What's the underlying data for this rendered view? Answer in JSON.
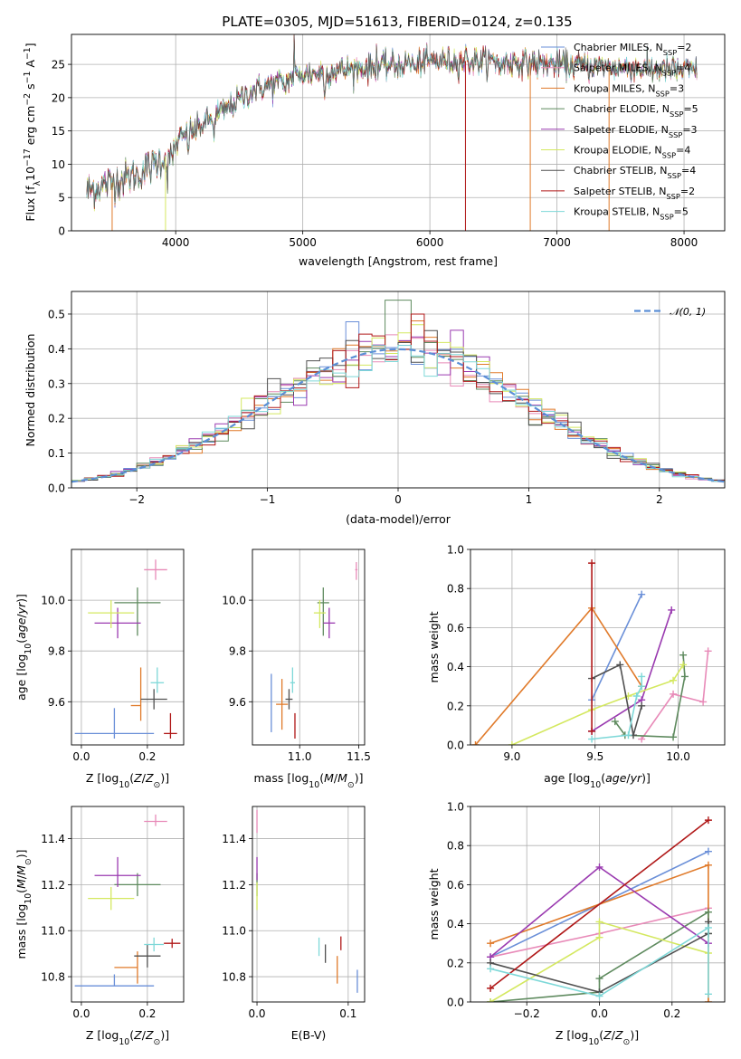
{
  "figure_title": "PLATE=0305, MJD=51613, FIBERID=0124, z=0.135",
  "series_legend": [
    {
      "name": "Chabrier MILES, N_SSP=2",
      "base": "Chabrier MILES, N",
      "sub": "SSP",
      "tail": "=2",
      "color": "#6a8fd8"
    },
    {
      "name": "Salpeter MILES, N_SSP=4",
      "base": "Salpeter MILES, N",
      "sub": "SSP",
      "tail": "=4",
      "color": "#e88ab8"
    },
    {
      "name": "Kroupa MILES, N_SSP=3",
      "base": "Kroupa MILES, N",
      "sub": "SSP",
      "tail": "=3",
      "color": "#e07a2a"
    },
    {
      "name": "Chabrier ELODIE, N_SSP=5",
      "base": "Chabrier ELODIE, N",
      "sub": "SSP",
      "tail": "=5",
      "color": "#5e8a5e"
    },
    {
      "name": "Salpeter ELODIE, N_SSP=3",
      "base": "Salpeter ELODIE, N",
      "sub": "SSP",
      "tail": "=3",
      "color": "#9a3ab0"
    },
    {
      "name": "Kroupa ELODIE, N_SSP=4",
      "base": "Kroupa ELODIE, N",
      "sub": "SSP",
      "tail": "=4",
      "color": "#d4e860"
    },
    {
      "name": "Chabrier STELIB, N_SSP=4",
      "base": "Chabrier STELIB, N",
      "sub": "SSP",
      "tail": "=4",
      "color": "#505050"
    },
    {
      "name": "Salpeter STELIB, N_SSP=2",
      "base": "Salpeter STELIB, N",
      "sub": "SSP",
      "tail": "=2",
      "color": "#b01818"
    },
    {
      "name": "Kroupa STELIB, N_SSP=5",
      "base": "Kroupa STELIB, N",
      "sub": "SSP",
      "tail": "=5",
      "color": "#7ed8d8"
    }
  ],
  "chart_data": [
    {
      "id": "spectrum",
      "type": "line",
      "xlabel": "wavelength [Angstrom, rest frame]",
      "ylabel": "Flux [f_λ 10^-17 erg cm^-2 s^-1 A^-1]",
      "ylabel_parts": {
        "a": "Flux [f",
        "b": "λ",
        "c": "10",
        "d": "−17",
        "e": " erg cm",
        "f": "−2",
        "g": " s",
        "h": "−1",
        "i": " A",
        "j": "−1",
        "k": "]"
      },
      "xlim": [
        3180,
        8320
      ],
      "ylim": [
        0,
        29.5
      ],
      "xticks": [
        4000,
        5000,
        6000,
        7000,
        8000
      ],
      "yticks": [
        0,
        5,
        10,
        15,
        20,
        25
      ],
      "x_range": [
        3300,
        8100
      ],
      "continuum_knots": [
        [
          3300,
          6.0
        ],
        [
          3700,
          8.5
        ],
        [
          3950,
          11.5
        ],
        [
          4050,
          14.0
        ],
        [
          4300,
          17.0
        ],
        [
          4600,
          21.0
        ],
        [
          5000,
          23.5
        ],
        [
          5500,
          24.5
        ],
        [
          6000,
          25.5
        ],
        [
          6500,
          25.5
        ],
        [
          7000,
          25.0
        ],
        [
          7500,
          24.5
        ],
        [
          8100,
          24.0
        ]
      ],
      "spikes": [
        [
          4930,
          29.3
        ],
        [
          5580,
          27.8
        ],
        [
          6280,
          27.5
        ]
      ],
      "dropouts": [
        {
          "x": 3500,
          "color": "#e07a2a"
        },
        {
          "x": 3920,
          "color": "#d4e860"
        },
        {
          "x": 6790,
          "color": "#e07a2a"
        },
        {
          "x": 7410,
          "color": "#e07a2a"
        },
        {
          "x": 6280,
          "color": "#b01818"
        }
      ]
    },
    {
      "id": "residuals",
      "type": "step-histogram",
      "xlabel": "(data-model)/error",
      "ylabel": "Normed distribution",
      "xlim": [
        -2.5,
        2.5
      ],
      "ylim": [
        0,
        0.565
      ],
      "xticks": [
        -2,
        -1,
        0,
        1,
        2
      ],
      "yticks": [
        0.0,
        0.1,
        0.2,
        0.3,
        0.4,
        0.5
      ],
      "bin_width": 0.1,
      "gaussian_label": "𝒩(0, 1)",
      "gaussian_color": "#5b8fd6"
    },
    {
      "id": "age_vs_Z",
      "type": "errorbar",
      "xlabel": "Z [log10(Z/Z☉)]",
      "ylabel": "age  [log10(age/yr)]",
      "xlim": [
        -0.03,
        0.31
      ],
      "ylim": [
        9.43,
        10.2
      ],
      "xticks": [
        0.0,
        0.2
      ],
      "yticks": [
        9.6,
        9.8,
        10.0
      ],
      "points": [
        {
          "c": 0,
          "x": 0.1,
          "y": 9.475,
          "xerr": [
            0.12,
            0.12
          ],
          "yerr": [
            0.02,
            0.1
          ]
        },
        {
          "c": 1,
          "x": 0.225,
          "y": 10.12,
          "xerr": [
            0.035,
            0.035
          ],
          "yerr": [
            0.04,
            0.04
          ]
        },
        {
          "c": 2,
          "x": 0.18,
          "y": 9.585,
          "xerr": [
            0.03,
            0.0
          ],
          "yerr": [
            0.06,
            0.15
          ]
        },
        {
          "c": 3,
          "x": 0.17,
          "y": 9.99,
          "xerr": [
            0.07,
            0.07
          ],
          "yerr": [
            0.13,
            0.06
          ]
        },
        {
          "c": 4,
          "x": 0.11,
          "y": 9.91,
          "xerr": [
            0.07,
            0.07
          ],
          "yerr": [
            0.06,
            0.06
          ]
        },
        {
          "c": 5,
          "x": 0.09,
          "y": 9.95,
          "xerr": [
            0.07,
            0.07
          ],
          "yerr": [
            0.06,
            0.05
          ]
        },
        {
          "c": 6,
          "x": 0.22,
          "y": 9.61,
          "xerr": [
            0.04,
            0.04
          ],
          "yerr": [
            0.04,
            0.04
          ]
        },
        {
          "c": 7,
          "x": 0.27,
          "y": 9.475,
          "xerr": [
            0.02,
            0.02
          ],
          "yerr": [
            0.02,
            0.08
          ]
        },
        {
          "c": 8,
          "x": 0.23,
          "y": 9.675,
          "xerr": [
            0.02,
            0.02
          ],
          "yerr": [
            0.04,
            0.06
          ]
        }
      ]
    },
    {
      "id": "age_vs_mass",
      "type": "errorbar",
      "xlabel": "mass [log10(M/M☉)]",
      "ylabel": "",
      "xlim": [
        10.6,
        11.55
      ],
      "ylim": [
        9.43,
        10.2
      ],
      "xticks": [
        11.0,
        11.5
      ],
      "yticks": [
        9.6,
        9.8,
        10.0
      ],
      "points": [
        {
          "c": 0,
          "x": 10.76,
          "y": 9.6,
          "xerr": [
            0.0,
            0.0
          ],
          "yerr": [
            0.12,
            0.11
          ]
        },
        {
          "c": 1,
          "x": 11.48,
          "y": 10.12,
          "xerr": [
            0.01,
            0.01
          ],
          "yerr": [
            0.04,
            0.03
          ]
        },
        {
          "c": 2,
          "x": 10.85,
          "y": 9.59,
          "xerr": [
            0.05,
            0.05
          ],
          "yerr": [
            0.1,
            0.1
          ]
        },
        {
          "c": 3,
          "x": 11.2,
          "y": 9.99,
          "xerr": [
            0.05,
            0.05
          ],
          "yerr": [
            0.13,
            0.06
          ]
        },
        {
          "c": 4,
          "x": 11.25,
          "y": 9.91,
          "xerr": [
            0.05,
            0.05
          ],
          "yerr": [
            0.06,
            0.06
          ]
        },
        {
          "c": 5,
          "x": 11.17,
          "y": 9.95,
          "xerr": [
            0.05,
            0.05
          ],
          "yerr": [
            0.06,
            0.05
          ]
        },
        {
          "c": 6,
          "x": 10.91,
          "y": 9.61,
          "xerr": [
            0.03,
            0.03
          ],
          "yerr": [
            0.04,
            0.04
          ]
        },
        {
          "c": 7,
          "x": 10.96,
          "y": 9.475,
          "xerr": [
            0.0,
            0.0
          ],
          "yerr": [
            0.02,
            0.08
          ]
        },
        {
          "c": 8,
          "x": 10.94,
          "y": 9.675,
          "xerr": [
            0.02,
            0.02
          ],
          "yerr": [
            0.04,
            0.06
          ]
        }
      ]
    },
    {
      "id": "weight_vs_age",
      "type": "line",
      "xlabel": "age  [log10(age/yr)]",
      "ylabel": "mass weight",
      "xlim": [
        8.75,
        10.28
      ],
      "ylim": [
        0.0,
        1.0
      ],
      "xticks": [
        9.0,
        9.5,
        10.0
      ],
      "yticks": [
        0.0,
        0.2,
        0.4,
        0.6,
        0.8,
        1.0
      ],
      "series": [
        {
          "c": 0,
          "x": [
            9.48,
            9.78
          ],
          "y": [
            0.23,
            0.77
          ]
        },
        {
          "c": 1,
          "x": [
            9.78,
            9.97,
            10.15,
            10.18
          ],
          "y": [
            0.03,
            0.26,
            0.22,
            0.48
          ]
        },
        {
          "c": 2,
          "x": [
            8.78,
            9.48,
            9.78
          ],
          "y": [
            0.0,
            0.7,
            0.3
          ]
        },
        {
          "c": 3,
          "x": [
            9.62,
            9.68,
            9.97,
            10.04,
            10.03
          ],
          "y": [
            0.12,
            0.05,
            0.04,
            0.35,
            0.46
          ]
        },
        {
          "c": 4,
          "x": [
            9.48,
            9.78,
            9.96
          ],
          "y": [
            0.07,
            0.23,
            0.69
          ]
        },
        {
          "c": 5,
          "x": [
            9.0,
            9.48,
            9.7,
            9.97,
            10.03
          ],
          "y": [
            0.0,
            0.18,
            0.25,
            0.33,
            0.41
          ]
        },
        {
          "c": 6,
          "x": [
            9.48,
            9.65,
            9.73,
            9.78
          ],
          "y": [
            0.34,
            0.41,
            0.05,
            0.2
          ]
        },
        {
          "c": 7,
          "x": [
            9.48,
            9.48
          ],
          "y": [
            0.07,
            0.93
          ]
        },
        {
          "c": 8,
          "x": [
            9.48,
            9.7,
            9.75,
            9.78,
            9.78
          ],
          "y": [
            0.03,
            0.05,
            0.25,
            0.3,
            0.35
          ]
        }
      ]
    },
    {
      "id": "mass_vs_Z",
      "type": "errorbar",
      "xlabel": "Z [log10(Z/Z☉)]",
      "ylabel": "mass [log10(M/M☉)]",
      "xlim": [
        -0.03,
        0.31
      ],
      "ylim": [
        10.69,
        11.54
      ],
      "xticks": [
        0.0,
        0.2
      ],
      "yticks": [
        10.8,
        11.0,
        11.2,
        11.4
      ],
      "points": [
        {
          "c": 0,
          "x": 0.1,
          "y": 10.76,
          "xerr": [
            0.12,
            0.12
          ],
          "yerr": [
            0.0,
            0.05
          ]
        },
        {
          "c": 1,
          "x": 0.225,
          "y": 11.475,
          "xerr": [
            0.035,
            0.035
          ],
          "yerr": [
            0.02,
            0.03
          ]
        },
        {
          "c": 2,
          "x": 0.17,
          "y": 10.84,
          "xerr": [
            0.07,
            0.0
          ],
          "yerr": [
            0.07,
            0.07
          ]
        },
        {
          "c": 3,
          "x": 0.17,
          "y": 11.2,
          "xerr": [
            0.07,
            0.07
          ],
          "yerr": [
            0.05,
            0.05
          ]
        },
        {
          "c": 4,
          "x": 0.11,
          "y": 11.24,
          "xerr": [
            0.07,
            0.07
          ],
          "yerr": [
            0.05,
            0.08
          ]
        },
        {
          "c": 5,
          "x": 0.09,
          "y": 11.14,
          "xerr": [
            0.07,
            0.07
          ],
          "yerr": [
            0.05,
            0.05
          ]
        },
        {
          "c": 6,
          "x": 0.2,
          "y": 10.89,
          "xerr": [
            0.04,
            0.04
          ],
          "yerr": [
            0.05,
            0.05
          ]
        },
        {
          "c": 7,
          "x": 0.275,
          "y": 10.945,
          "xerr": [
            0.025,
            0.025
          ],
          "yerr": [
            0.02,
            0.02
          ]
        },
        {
          "c": 8,
          "x": 0.22,
          "y": 10.94,
          "xerr": [
            0.03,
            0.03
          ],
          "yerr": [
            0.03,
            0.03
          ]
        }
      ]
    },
    {
      "id": "mass_vs_EBV",
      "type": "errorbar",
      "xlabel": "E(B-V)",
      "ylabel": "",
      "xlim": [
        -0.005,
        0.118
      ],
      "ylim": [
        10.69,
        11.54
      ],
      "xticks": [
        0.0,
        0.1
      ],
      "yticks": [
        10.8,
        11.0,
        11.2,
        11.4
      ],
      "points": [
        {
          "c": 0,
          "x": 0.11,
          "y": 10.78,
          "xerr": [
            0.0,
            0.0
          ],
          "yerr": [
            0.05,
            0.05
          ]
        },
        {
          "c": 1,
          "x": 0.0,
          "y": 11.475,
          "xerr": [
            0.0,
            0.0
          ],
          "yerr": [
            0.05,
            0.05
          ]
        },
        {
          "c": 2,
          "x": 0.088,
          "y": 10.83,
          "xerr": [
            0.0,
            0.0
          ],
          "yerr": [
            0.06,
            0.06
          ]
        },
        {
          "c": 3,
          "x": 0.0,
          "y": 11.2,
          "xerr": [
            0.0,
            0.0
          ],
          "yerr": [
            0.05,
            0.05
          ]
        },
        {
          "c": 4,
          "x": 0.0,
          "y": 11.27,
          "xerr": [
            0.0,
            0.0
          ],
          "yerr": [
            0.05,
            0.05
          ]
        },
        {
          "c": 5,
          "x": 0.0,
          "y": 11.15,
          "xerr": [
            0.0,
            0.0
          ],
          "yerr": [
            0.06,
            0.06
          ]
        },
        {
          "c": 6,
          "x": 0.075,
          "y": 10.9,
          "xerr": [
            0.0,
            0.0
          ],
          "yerr": [
            0.04,
            0.04
          ]
        },
        {
          "c": 7,
          "x": 0.092,
          "y": 10.945,
          "xerr": [
            0.0,
            0.0
          ],
          "yerr": [
            0.03,
            0.03
          ]
        },
        {
          "c": 8,
          "x": 0.068,
          "y": 10.93,
          "xerr": [
            0.0,
            0.0
          ],
          "yerr": [
            0.04,
            0.04
          ]
        }
      ]
    },
    {
      "id": "weight_vs_Z",
      "type": "line",
      "xlabel": "Z [log10(Z/Z☉)]",
      "ylabel": "mass weight",
      "xlim": [
        -0.355,
        0.345
      ],
      "ylim": [
        0.0,
        1.0
      ],
      "xticks": [
        -0.2,
        0.0,
        0.2
      ],
      "yticks": [
        0.0,
        0.2,
        0.4,
        0.6,
        0.8,
        1.0
      ],
      "series": [
        {
          "c": 0,
          "x": [
            -0.3,
            0.3
          ],
          "y": [
            0.23,
            0.77
          ]
        },
        {
          "c": 1,
          "x": [
            -0.3,
            0.0,
            0.3
          ],
          "y": [
            0.23,
            0.35,
            0.48
          ]
        },
        {
          "c": 2,
          "x": [
            -0.3,
            0.3,
            0.3
          ],
          "y": [
            0.3,
            0.7,
            0.0
          ]
        },
        {
          "c": 3,
          "x": [
            -0.3,
            0.0,
            0.0,
            0.3,
            0.3
          ],
          "y": [
            0.0,
            0.05,
            0.12,
            0.46,
            0.35
          ]
        },
        {
          "c": 4,
          "x": [
            -0.3,
            0.0,
            0.3
          ],
          "y": [
            0.23,
            0.69,
            0.3
          ]
        },
        {
          "c": 5,
          "x": [
            -0.3,
            0.0,
            0.0,
            0.3
          ],
          "y": [
            0.0,
            0.33,
            0.41,
            0.25
          ]
        },
        {
          "c": 6,
          "x": [
            -0.3,
            0.0,
            0.3,
            0.3
          ],
          "y": [
            0.2,
            0.05,
            0.35,
            0.41
          ]
        },
        {
          "c": 7,
          "x": [
            -0.3,
            0.3
          ],
          "y": [
            0.07,
            0.93
          ]
        },
        {
          "c": 8,
          "x": [
            -0.3,
            0.0,
            0.3,
            0.3
          ],
          "y": [
            0.17,
            0.03,
            0.38,
            0.04
          ]
        }
      ]
    }
  ]
}
